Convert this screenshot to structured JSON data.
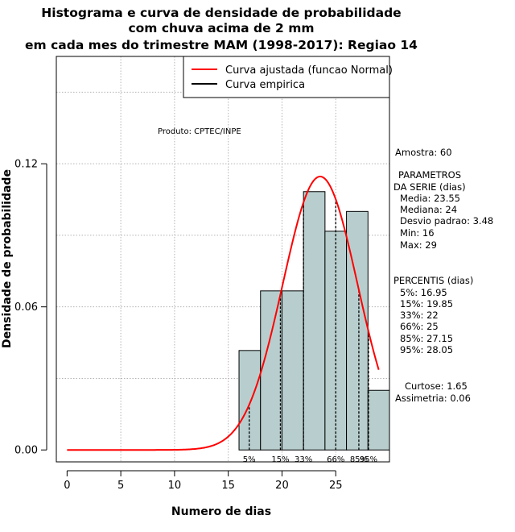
{
  "chart_data": {
    "type": "bar",
    "title_lines": [
      "Histograma e curva de densidade de probabilidade",
      "com chuva acima de 2 mm",
      "em cada mes do trimestre MAM (1998-2017): Regiao 14"
    ],
    "xlabel": "Numero de dias",
    "ylabel": "Densidade de probabilidade",
    "xlim": [
      -1,
      30
    ],
    "ylim": [
      -0.005,
      0.165
    ],
    "x_ticks": [
      0,
      5,
      10,
      15,
      20,
      25
    ],
    "y_ticks": [
      0.0,
      0.06,
      0.12
    ],
    "y_tick_labels": [
      "0.00",
      "0.06",
      "0.12"
    ],
    "grid": true,
    "histogram": {
      "bin_edges": [
        16,
        18,
        20,
        22,
        24,
        26,
        28,
        30
      ],
      "density": [
        0.0417,
        0.0667,
        0.0667,
        0.1083,
        0.0917,
        0.1,
        0.025
      ],
      "fill_color": "#b8cece"
    },
    "normal_curve": {
      "name": "Curva ajustada (funcao Normal)",
      "mean": 23.55,
      "sd": 3.48,
      "x_from": 0,
      "x_to": 29,
      "color": "#ff0000"
    },
    "empirical_curve": {
      "name": "Curva empirica",
      "color": "#000000"
    },
    "legend_position": "top-right",
    "percentile_lines": [
      {
        "label": "5%",
        "x": 16.95
      },
      {
        "label": "15%",
        "x": 19.85
      },
      {
        "label": "33%",
        "x": 22
      },
      {
        "label": "66%",
        "x": 25
      },
      {
        "label": "85%",
        "x": 27.15
      },
      {
        "label": "95%",
        "x": 28.05
      }
    ],
    "product_label": "Produto: CPTEC/INPE",
    "side_text": [
      "Amostra: 60",
      "PARAMETROS",
      "DA SERIE (dias)",
      "Media: 23.55",
      "Mediana: 24",
      "Desvio padrao: 3.48",
      "Min: 16",
      "Max: 29",
      "PERCENTIS (dias)",
      "5%: 16.95",
      "15%: 19.85",
      "33%: 22",
      "66%: 25",
      "85%: 27.15",
      "95%: 28.05",
      "Curtose: 1.65",
      "Assimetria: 0.06"
    ]
  }
}
